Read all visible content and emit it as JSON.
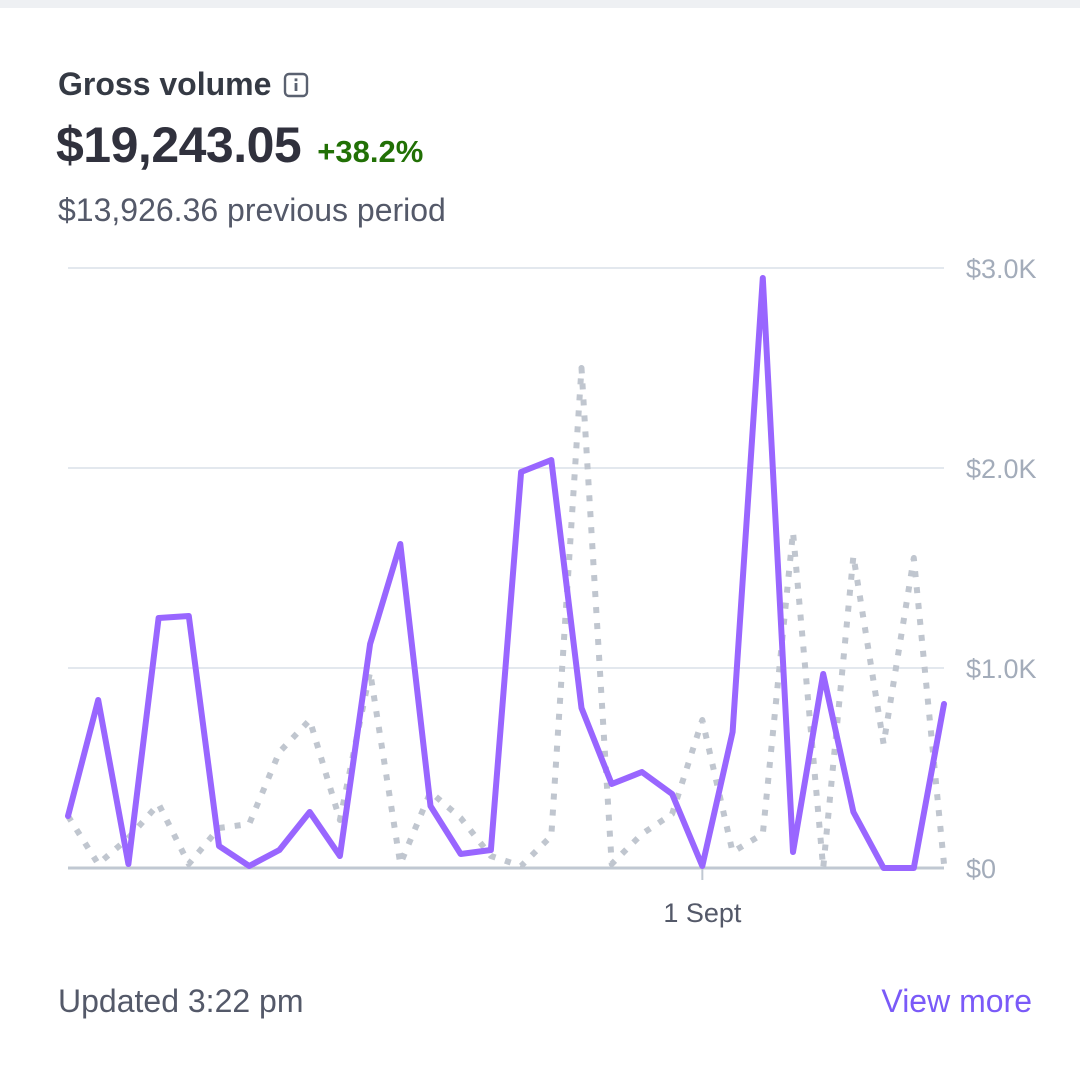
{
  "card": {
    "title": "Gross volume",
    "info_icon": "info-icon",
    "value": "$19,243.05",
    "change": "+38.2%",
    "previous": "$13,926.36 previous period",
    "updated": "Updated 3:22 pm",
    "view_more": "View more"
  },
  "colors": {
    "current": "#9966ff",
    "previous": "#c0c6cf",
    "positive": "#217005",
    "link": "#7a5af8"
  },
  "chart_data": {
    "type": "line",
    "x_tick_label": "1 Sept",
    "x_tick_index": 21,
    "y_ticks": [
      "$0",
      "$1.0K",
      "$2.0K",
      "$3.0K"
    ],
    "y_tick_values": [
      0,
      1000,
      2000,
      3000
    ],
    "ylim": [
      0,
      3000
    ],
    "y_axis_side": "right",
    "grid": true,
    "series": [
      {
        "style": "solid",
        "values": [
          260,
          840,
          20,
          1250,
          1260,
          110,
          10,
          90,
          280,
          60,
          1120,
          1620,
          310,
          70,
          90,
          1980,
          2040,
          800,
          420,
          480,
          370,
          10,
          680,
          2950,
          80,
          970,
          280,
          0,
          0,
          820
        ]
      },
      {
        "style": "dotted",
        "values": [
          260,
          20,
          150,
          320,
          20,
          200,
          220,
          580,
          740,
          240,
          980,
          20,
          380,
          250,
          60,
          10,
          160,
          2500,
          20,
          170,
          270,
          740,
          80,
          170,
          1680,
          0,
          1560,
          620,
          1550,
          20
        ]
      }
    ]
  }
}
